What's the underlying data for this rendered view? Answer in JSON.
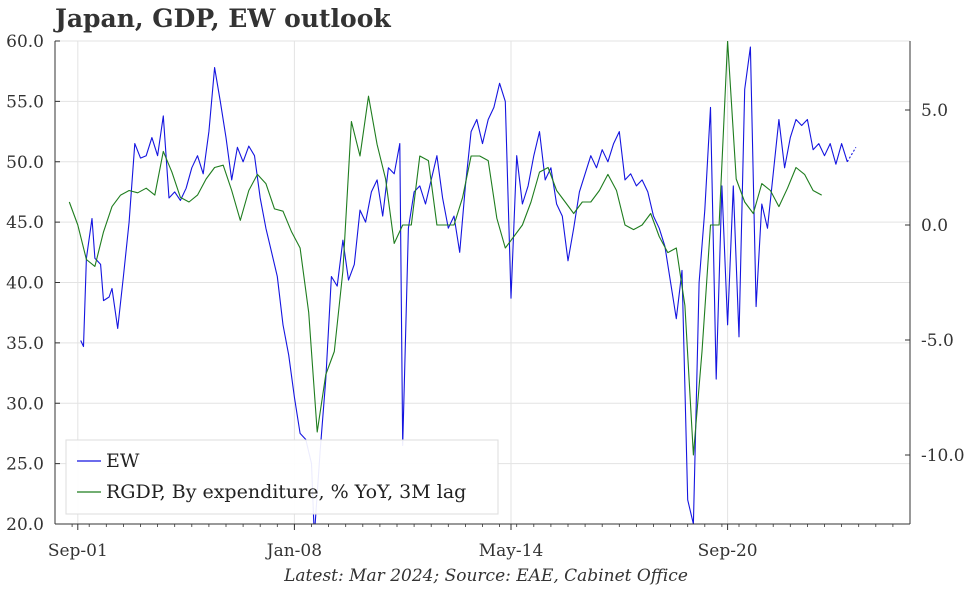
{
  "title": "Japan, GDP, EW outlook",
  "source": "Latest: Mar 2024; Source: EAE, Cabinet Office",
  "chart_data": {
    "type": "line",
    "title": "Japan, GDP, EW outlook",
    "x_ticks": [
      "Sep-01",
      "Jan-08",
      "May-14",
      "Sep-20"
    ],
    "x_range": [
      "Jan-2001",
      "Dec-2025"
    ],
    "y_left": {
      "ticks": [
        "20.0",
        "25.0",
        "30.0",
        "35.0",
        "40.0",
        "45.0",
        "50.0",
        "55.0",
        "60.0"
      ],
      "range": [
        20,
        60
      ]
    },
    "y_right": {
      "ticks": [
        "5.0",
        "0.0",
        "-5.0",
        "-10.0"
      ],
      "range": [
        -13,
        8
      ]
    },
    "grid": true,
    "legend_position": "bottom-left",
    "colors": {
      "ew": "#1515e0",
      "rgdp": "#1f7d1f",
      "grid": "#e3e3e3",
      "axis": "#333333"
    },
    "series": [
      {
        "name": "EW",
        "axis": "left",
        "color": "#1515e0",
        "points": [
          [
            "2001-10",
            35.2
          ],
          [
            "2001-11",
            34.7
          ],
          [
            "2001-12",
            42.0
          ],
          [
            "2002-02",
            45.3
          ],
          [
            "2002-03",
            42.0
          ],
          [
            "2002-05",
            41.5
          ],
          [
            "2002-06",
            38.5
          ],
          [
            "2002-08",
            38.8
          ],
          [
            "2002-09",
            39.5
          ],
          [
            "2002-11",
            36.2
          ],
          [
            "2003-01",
            40.5
          ],
          [
            "2003-03",
            45.0
          ],
          [
            "2003-05",
            51.5
          ],
          [
            "2003-07",
            50.3
          ],
          [
            "2003-09",
            50.5
          ],
          [
            "2003-11",
            52.0
          ],
          [
            "2004-01",
            50.5
          ],
          [
            "2004-03",
            53.8
          ],
          [
            "2004-05",
            47.0
          ],
          [
            "2004-07",
            47.5
          ],
          [
            "2004-09",
            46.8
          ],
          [
            "2004-11",
            47.8
          ],
          [
            "2005-01",
            49.5
          ],
          [
            "2005-03",
            50.5
          ],
          [
            "2005-05",
            49.0
          ],
          [
            "2005-07",
            52.5
          ],
          [
            "2005-09",
            57.8
          ],
          [
            "2005-11",
            55.0
          ],
          [
            "2006-01",
            52.0
          ],
          [
            "2006-03",
            48.5
          ],
          [
            "2006-05",
            51.2
          ],
          [
            "2006-07",
            50.0
          ],
          [
            "2006-09",
            51.3
          ],
          [
            "2006-11",
            50.5
          ],
          [
            "2007-01",
            47.0
          ],
          [
            "2007-03",
            44.5
          ],
          [
            "2007-05",
            42.5
          ],
          [
            "2007-07",
            40.5
          ],
          [
            "2007-09",
            36.5
          ],
          [
            "2007-11",
            34.0
          ],
          [
            "2008-01",
            30.5
          ],
          [
            "2008-03",
            27.5
          ],
          [
            "2008-05",
            27.0
          ],
          [
            "2008-07",
            25.0
          ],
          [
            "2008-08",
            19.0
          ],
          [
            "2008-10",
            26.0
          ],
          [
            "2008-12",
            32.0
          ],
          [
            "2009-02",
            40.5
          ],
          [
            "2009-04",
            39.7
          ],
          [
            "2009-06",
            43.5
          ],
          [
            "2009-08",
            40.2
          ],
          [
            "2009-10",
            41.5
          ],
          [
            "2009-12",
            46.0
          ],
          [
            "2010-02",
            45.0
          ],
          [
            "2010-04",
            47.5
          ],
          [
            "2010-06",
            48.5
          ],
          [
            "2010-08",
            45.5
          ],
          [
            "2010-10",
            49.5
          ],
          [
            "2010-12",
            49.0
          ],
          [
            "2011-02",
            51.5
          ],
          [
            "2011-03",
            26.5
          ],
          [
            "2011-05",
            44.5
          ],
          [
            "2011-07",
            47.5
          ],
          [
            "2011-09",
            48.0
          ],
          [
            "2011-11",
            46.5
          ],
          [
            "2012-01",
            48.5
          ],
          [
            "2012-03",
            50.5
          ],
          [
            "2012-05",
            47.0
          ],
          [
            "2012-07",
            44.5
          ],
          [
            "2012-09",
            45.5
          ],
          [
            "2012-11",
            42.5
          ],
          [
            "2013-01",
            48.0
          ],
          [
            "2013-03",
            52.5
          ],
          [
            "2013-05",
            53.5
          ],
          [
            "2013-07",
            51.5
          ],
          [
            "2013-09",
            53.5
          ],
          [
            "2013-11",
            54.5
          ],
          [
            "2014-01",
            56.5
          ],
          [
            "2014-03",
            55.0
          ],
          [
            "2014-05",
            38.7
          ],
          [
            "2014-07",
            50.5
          ],
          [
            "2014-09",
            46.5
          ],
          [
            "2014-11",
            48.0
          ],
          [
            "2015-01",
            50.5
          ],
          [
            "2015-03",
            52.5
          ],
          [
            "2015-05",
            48.5
          ],
          [
            "2015-07",
            49.5
          ],
          [
            "2015-09",
            46.5
          ],
          [
            "2015-11",
            45.5
          ],
          [
            "2016-01",
            41.8
          ],
          [
            "2016-03",
            44.5
          ],
          [
            "2016-05",
            47.5
          ],
          [
            "2016-07",
            49.0
          ],
          [
            "2016-09",
            50.5
          ],
          [
            "2016-11",
            49.5
          ],
          [
            "2017-01",
            51.0
          ],
          [
            "2017-03",
            50.0
          ],
          [
            "2017-05",
            51.5
          ],
          [
            "2017-07",
            52.5
          ],
          [
            "2017-09",
            48.5
          ],
          [
            "2017-11",
            49.0
          ],
          [
            "2018-01",
            48.0
          ],
          [
            "2018-03",
            48.5
          ],
          [
            "2018-05",
            47.5
          ],
          [
            "2018-07",
            45.5
          ],
          [
            "2018-09",
            44.5
          ],
          [
            "2018-11",
            43.0
          ],
          [
            "2019-01",
            40.0
          ],
          [
            "2019-03",
            37.0
          ],
          [
            "2019-05",
            41.0
          ],
          [
            "2019-07",
            22.0
          ],
          [
            "2019-09",
            20.0
          ],
          [
            "2019-11",
            40.0
          ],
          [
            "2020-01",
            46.0
          ],
          [
            "2020-03",
            54.5
          ],
          [
            "2020-05",
            32.0
          ],
          [
            "2020-07",
            48.0
          ],
          [
            "2020-09",
            36.5
          ],
          [
            "2020-11",
            48.0
          ],
          [
            "2021-01",
            35.5
          ],
          [
            "2021-03",
            56.0
          ],
          [
            "2021-05",
            59.5
          ],
          [
            "2021-07",
            38.0
          ],
          [
            "2021-09",
            46.5
          ],
          [
            "2021-11",
            44.5
          ],
          [
            "2022-01",
            49.0
          ],
          [
            "2022-03",
            53.5
          ],
          [
            "2022-05",
            49.5
          ],
          [
            "2022-07",
            52.0
          ],
          [
            "2022-09",
            53.5
          ],
          [
            "2022-11",
            53.0
          ],
          [
            "2023-01",
            53.5
          ],
          [
            "2023-03",
            51.0
          ],
          [
            "2023-05",
            51.5
          ],
          [
            "2023-07",
            50.5
          ],
          [
            "2023-09",
            51.5
          ],
          [
            "2023-11",
            49.8
          ],
          [
            "2024-01",
            51.5
          ],
          [
            "2024-03",
            50.0
          ]
        ],
        "projection": [
          [
            "2024-03",
            50.0
          ],
          [
            "2024-06",
            51.2
          ]
        ]
      },
      {
        "name": "RGDP, By expenditure, % YoY, 3M lag",
        "axis": "right",
        "color": "#1f7d1f",
        "points": [
          [
            "2001-06",
            1.0
          ],
          [
            "2001-09",
            0.0
          ],
          [
            "2001-12",
            -1.5
          ],
          [
            "2002-03",
            -1.8
          ],
          [
            "2002-06",
            -0.3
          ],
          [
            "2002-09",
            0.8
          ],
          [
            "2002-12",
            1.3
          ],
          [
            "2003-03",
            1.5
          ],
          [
            "2003-06",
            1.4
          ],
          [
            "2003-09",
            1.6
          ],
          [
            "2003-12",
            1.3
          ],
          [
            "2004-03",
            3.2
          ],
          [
            "2004-06",
            2.3
          ],
          [
            "2004-09",
            1.2
          ],
          [
            "2004-12",
            1.0
          ],
          [
            "2005-03",
            1.3
          ],
          [
            "2005-06",
            2.0
          ],
          [
            "2005-09",
            2.5
          ],
          [
            "2005-12",
            2.6
          ],
          [
            "2006-03",
            1.5
          ],
          [
            "2006-06",
            0.2
          ],
          [
            "2006-09",
            1.5
          ],
          [
            "2006-12",
            2.2
          ],
          [
            "2007-03",
            1.8
          ],
          [
            "2007-06",
            0.7
          ],
          [
            "2007-09",
            0.6
          ],
          [
            "2007-12",
            -0.3
          ],
          [
            "2008-03",
            -1.0
          ],
          [
            "2008-06",
            -3.8
          ],
          [
            "2008-09",
            -9.0
          ],
          [
            "2008-12",
            -6.5
          ],
          [
            "2009-03",
            -5.5
          ],
          [
            "2009-06",
            -2.0
          ],
          [
            "2009-09",
            4.5
          ],
          [
            "2009-12",
            3.0
          ],
          [
            "2010-03",
            5.6
          ],
          [
            "2010-06",
            3.5
          ],
          [
            "2010-09",
            2.0
          ],
          [
            "2010-12",
            -0.8
          ],
          [
            "2011-03",
            0.0
          ],
          [
            "2011-06",
            0.0
          ],
          [
            "2011-09",
            3.0
          ],
          [
            "2011-12",
            2.8
          ],
          [
            "2012-03",
            0.0
          ],
          [
            "2012-06",
            0.0
          ],
          [
            "2012-09",
            0.0
          ],
          [
            "2012-12",
            1.2
          ],
          [
            "2013-03",
            3.0
          ],
          [
            "2013-06",
            3.0
          ],
          [
            "2013-09",
            2.8
          ],
          [
            "2013-12",
            0.3
          ],
          [
            "2014-03",
            -1.0
          ],
          [
            "2014-06",
            -0.5
          ],
          [
            "2014-09",
            0.0
          ],
          [
            "2014-12",
            1.0
          ],
          [
            "2015-03",
            2.3
          ],
          [
            "2015-06",
            2.5
          ],
          [
            "2015-09",
            1.5
          ],
          [
            "2015-12",
            1.0
          ],
          [
            "2016-03",
            0.5
          ],
          [
            "2016-06",
            1.0
          ],
          [
            "2016-09",
            1.0
          ],
          [
            "2016-12",
            1.5
          ],
          [
            "2017-03",
            2.2
          ],
          [
            "2017-06",
            1.5
          ],
          [
            "2017-09",
            0.0
          ],
          [
            "2017-12",
            -0.2
          ],
          [
            "2018-03",
            0.0
          ],
          [
            "2018-06",
            0.5
          ],
          [
            "2018-09",
            -0.5
          ],
          [
            "2018-12",
            -1.2
          ],
          [
            "2019-03",
            -1.0
          ],
          [
            "2019-06",
            -3.5
          ],
          [
            "2019-09",
            -10.0
          ],
          [
            "2019-12",
            -5.5
          ],
          [
            "2020-03",
            0.0
          ],
          [
            "2020-06",
            0.0
          ],
          [
            "2020-09",
            8.0
          ],
          [
            "2020-12",
            2.0
          ],
          [
            "2021-03",
            1.0
          ],
          [
            "2021-06",
            0.5
          ],
          [
            "2021-09",
            1.8
          ],
          [
            "2021-12",
            1.5
          ],
          [
            "2022-03",
            0.8
          ],
          [
            "2022-06",
            1.6
          ],
          [
            "2022-09",
            2.5
          ],
          [
            "2022-12",
            2.2
          ],
          [
            "2023-03",
            1.5
          ],
          [
            "2023-06",
            1.3
          ]
        ]
      }
    ]
  }
}
